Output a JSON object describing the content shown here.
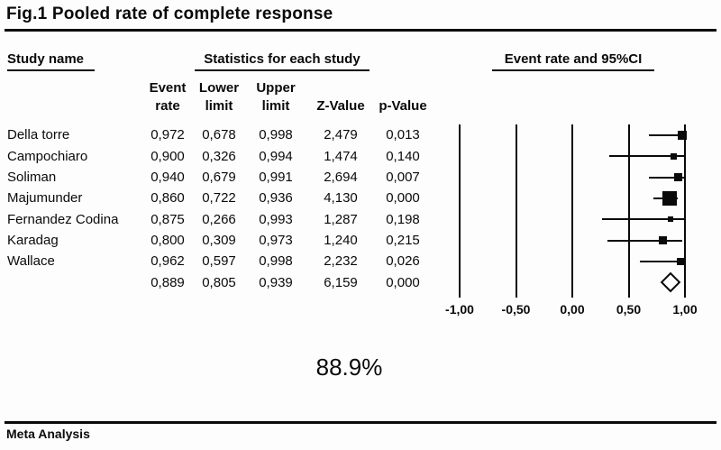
{
  "title": "Fig.1 Pooled rate of complete response",
  "footer": "Meta Analysis",
  "summary_rate": "88.9%",
  "table": {
    "group_headers": {
      "study": "Study name",
      "stats": "Statistics for each study",
      "plot": "Event rate and 95%CI"
    },
    "columns": [
      {
        "line1": "Event",
        "line2": "rate"
      },
      {
        "line1": "Lower",
        "line2": "limit"
      },
      {
        "line1": "Upper",
        "line2": "limit"
      },
      {
        "line1": "",
        "line2": "Z-Value"
      },
      {
        "line1": "",
        "line2": "p-Value"
      }
    ],
    "rows": [
      {
        "name": "Della torre",
        "event_rate": "0,972",
        "lower_limit": "0,678",
        "upper_limit": "0,998",
        "z_value": "2,479",
        "p_value": "0,013"
      },
      {
        "name": "Campochiaro",
        "event_rate": "0,900",
        "lower_limit": "0,326",
        "upper_limit": "0,994",
        "z_value": "1,474",
        "p_value": "0,140"
      },
      {
        "name": "Soliman",
        "event_rate": "0,940",
        "lower_limit": "0,679",
        "upper_limit": "0,991",
        "z_value": "2,694",
        "p_value": "0,007"
      },
      {
        "name": "Majumunder",
        "event_rate": "0,860",
        "lower_limit": "0,722",
        "upper_limit": "0,936",
        "z_value": "4,130",
        "p_value": "0,000"
      },
      {
        "name": "Fernandez Codina",
        "event_rate": "0,875",
        "lower_limit": "0,266",
        "upper_limit": "0,993",
        "z_value": "1,287",
        "p_value": "0,198"
      },
      {
        "name": "Karadag",
        "event_rate": "0,800",
        "lower_limit": "0,309",
        "upper_limit": "0,973",
        "z_value": "1,240",
        "p_value": "0,215"
      },
      {
        "name": "Wallace",
        "event_rate": "0,962",
        "lower_limit": "0,597",
        "upper_limit": "0,998",
        "z_value": "2,232",
        "p_value": "0,026"
      },
      {
        "name": "",
        "event_rate": "0,889",
        "lower_limit": "0,805",
        "upper_limit": "0,939",
        "z_value": "6,159",
        "p_value": "0,000"
      }
    ]
  },
  "chart_data": {
    "type": "forest",
    "title": "Fig.1 Pooled rate of complete response",
    "axis_header": "Event rate and 95%CI",
    "xlim": [
      -1,
      1
    ],
    "ticks": [
      {
        "label": "-1,00",
        "value": -1
      },
      {
        "label": "-0,50",
        "value": -0.5
      },
      {
        "label": "0,00",
        "value": 0
      },
      {
        "label": "0,50",
        "value": 0.5
      },
      {
        "label": "1,00",
        "value": 1
      }
    ],
    "studies": [
      {
        "name": "Della torre",
        "event_rate": 0.972,
        "lower": 0.678,
        "upper": 0.998,
        "z": 2.479,
        "p": 0.013,
        "marker_size": 10
      },
      {
        "name": "Campochiaro",
        "event_rate": 0.9,
        "lower": 0.326,
        "upper": 0.994,
        "z": 1.474,
        "p": 0.14,
        "marker_size": 7
      },
      {
        "name": "Soliman",
        "event_rate": 0.94,
        "lower": 0.679,
        "upper": 0.991,
        "z": 2.694,
        "p": 0.007,
        "marker_size": 9
      },
      {
        "name": "Majumunder",
        "event_rate": 0.86,
        "lower": 0.722,
        "upper": 0.936,
        "z": 4.13,
        "p": 0.0,
        "marker_size": 16
      },
      {
        "name": "Fernandez Codina",
        "event_rate": 0.875,
        "lower": 0.266,
        "upper": 0.993,
        "z": 1.287,
        "p": 0.198,
        "marker_size": 6
      },
      {
        "name": "Karadag",
        "event_rate": 0.8,
        "lower": 0.309,
        "upper": 0.973,
        "z": 1.24,
        "p": 0.215,
        "marker_size": 9
      },
      {
        "name": "Wallace",
        "event_rate": 0.962,
        "lower": 0.597,
        "upper": 0.998,
        "z": 2.232,
        "p": 0.026,
        "marker_size": 8
      }
    ],
    "pooled": {
      "event_rate": 0.889,
      "lower": 0.805,
      "upper": 0.939,
      "z": 6.159,
      "p": 0.0,
      "percent_label": "88.9%"
    }
  }
}
